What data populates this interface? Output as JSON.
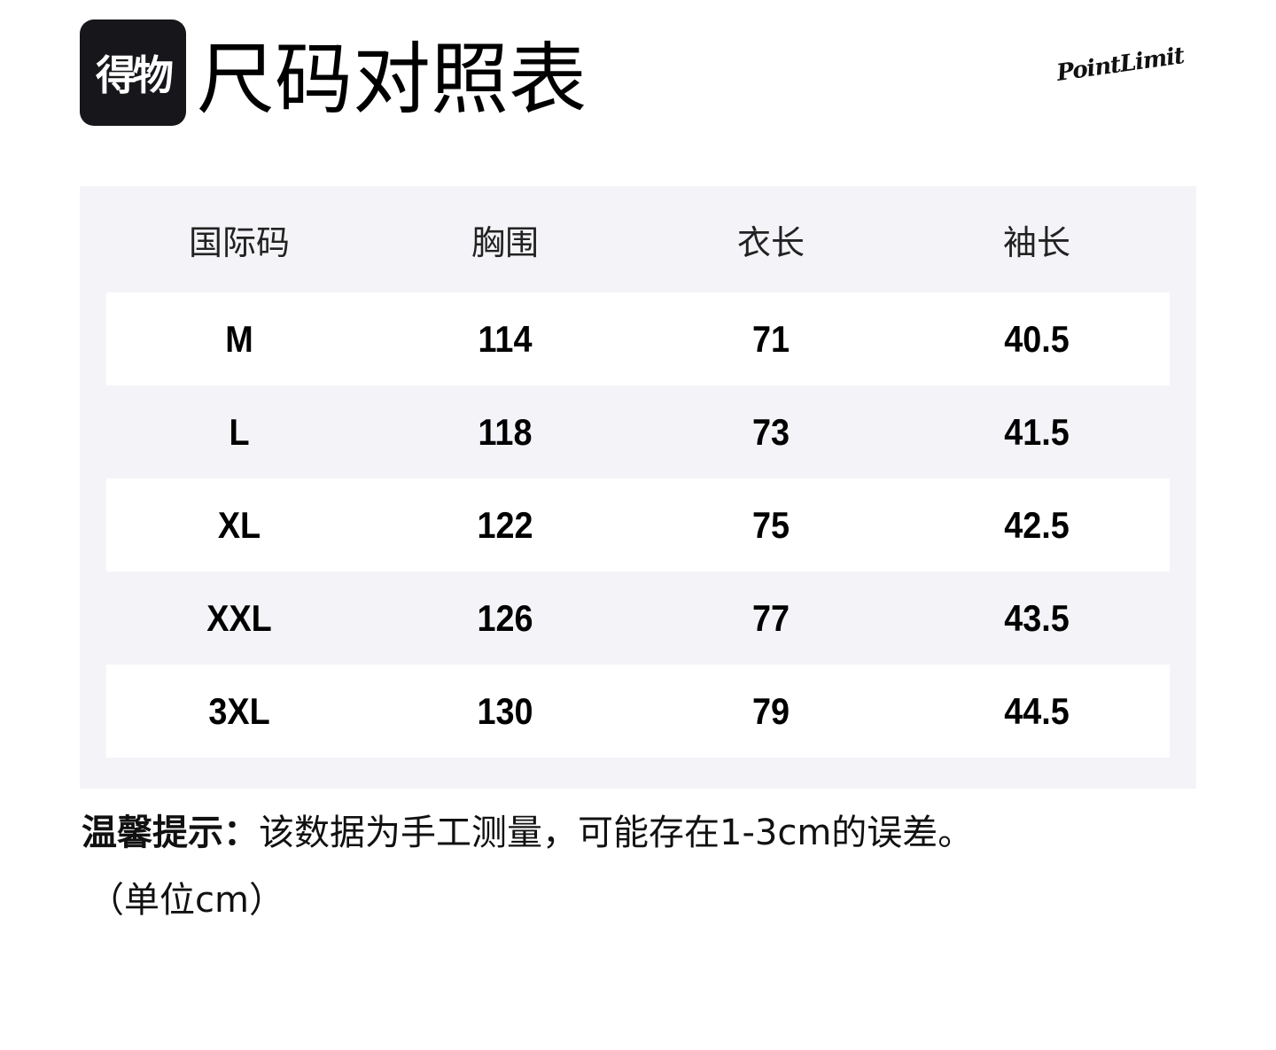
{
  "logo": {
    "text": "得物"
  },
  "title": "尺码对照表",
  "brand": "PointLimit",
  "table": {
    "headers": [
      "国际码",
      "胸围",
      "衣长",
      "袖长"
    ],
    "rows": [
      [
        "M",
        "114",
        "71",
        "40.5"
      ],
      [
        "L",
        "118",
        "73",
        "41.5"
      ],
      [
        "XL",
        "122",
        "75",
        "42.5"
      ],
      [
        "XXL",
        "126",
        "77",
        "43.5"
      ],
      [
        "3XL",
        "130",
        "79",
        "44.5"
      ]
    ]
  },
  "note": {
    "label": "温馨提示：",
    "text": "该数据为手工测量，可能存在1-3cm的误差。",
    "unit": "（单位cm）"
  },
  "colors": {
    "panel": "#f4f4f8",
    "logo_bg": "#17171b"
  }
}
